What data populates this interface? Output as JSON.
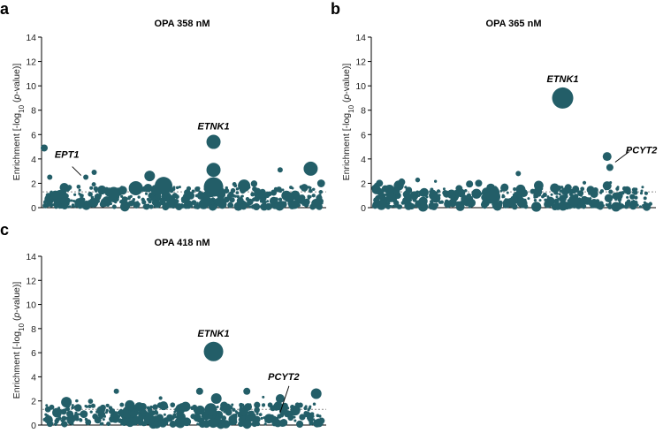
{
  "chart_data": [
    {
      "type": "scatter",
      "panel": "a",
      "title": "OPA 358 nM",
      "ylabel": "Enrichment [-log10 (p-value)]",
      "ylabel_parts": [
        "Enrichment [-log",
        "10",
        " (",
        "p",
        "-value)]"
      ],
      "ylim": [
        0,
        14
      ],
      "yticks": [
        "0",
        "2",
        "4",
        "6",
        "8",
        "10",
        "12",
        "14"
      ],
      "threshold": 1.3,
      "background_count": 420,
      "background_seed": 11,
      "points": [
        {
          "x": 0.0,
          "y": 4.9,
          "r": 4
        },
        {
          "x": 0.02,
          "y": 2.5,
          "r": 3
        },
        {
          "x": 0.15,
          "y": 2.5,
          "r": 3
        },
        {
          "x": 0.18,
          "y": 2.9,
          "r": 3
        },
        {
          "x": 0.25,
          "y": 1.2,
          "r": 7
        },
        {
          "x": 0.33,
          "y": 1.6,
          "r": 8
        },
        {
          "x": 0.38,
          "y": 2.6,
          "r": 6
        },
        {
          "x": 0.43,
          "y": 1.8,
          "r": 10
        },
        {
          "x": 0.61,
          "y": 5.4,
          "r": 8
        },
        {
          "x": 0.61,
          "y": 3.1,
          "r": 8
        },
        {
          "x": 0.61,
          "y": 1.7,
          "r": 11
        },
        {
          "x": 0.72,
          "y": 1.8,
          "r": 7
        },
        {
          "x": 0.85,
          "y": 3.1,
          "r": 3
        },
        {
          "x": 0.96,
          "y": 3.2,
          "r": 8
        }
      ],
      "annotations": [
        {
          "label": "ETNK1",
          "x": 0.61,
          "y": 5.4
        },
        {
          "label": "EPT1",
          "x": 0.12,
          "y": 2.5
        }
      ]
    },
    {
      "type": "scatter",
      "panel": "b",
      "title": "OPA 365 nM",
      "ylabel": "Enrichment [-log10 (p-value)]",
      "ylabel_parts": [
        "Enrichment [-log",
        "10",
        " (",
        "p",
        "-value)]"
      ],
      "ylim": [
        0,
        14
      ],
      "yticks": [
        "0",
        "2",
        "4",
        "6",
        "8",
        "10",
        "12",
        "14"
      ],
      "threshold": 1.3,
      "background_count": 420,
      "background_seed": 23,
      "points": [
        {
          "x": 0.02,
          "y": 2.0,
          "r": 4
        },
        {
          "x": 0.1,
          "y": 2.1,
          "r": 4
        },
        {
          "x": 0.43,
          "y": 0.9,
          "r": 8
        },
        {
          "x": 0.52,
          "y": 2.8,
          "r": 3
        },
        {
          "x": 0.59,
          "y": 1.3,
          "r": 5
        },
        {
          "x": 0.68,
          "y": 9.0,
          "r": 12
        },
        {
          "x": 0.84,
          "y": 4.2,
          "r": 5
        },
        {
          "x": 0.85,
          "y": 3.3,
          "r": 4
        },
        {
          "x": 0.84,
          "y": 1.8,
          "r": 5
        },
        {
          "x": 0.72,
          "y": 0.6,
          "r": 6
        }
      ],
      "annotations": [
        {
          "label": "ETNK1",
          "x": 0.68,
          "y": 9.0
        },
        {
          "label": "PCYT2",
          "x": 0.85,
          "y": 3.3
        }
      ]
    },
    {
      "type": "scatter",
      "panel": "c",
      "title": "OPA 418 nM",
      "ylabel": "Enrichment [-log10 (p-value)]",
      "ylabel_parts": [
        "Enrichment [-log",
        "10",
        " (",
        "p",
        "-value)]"
      ],
      "ylim": [
        0,
        14
      ],
      "yticks": [
        "0",
        "2",
        "4",
        "6",
        "8",
        "10",
        "12",
        "14"
      ],
      "threshold": 1.3,
      "background_count": 420,
      "background_seed": 37,
      "points": [
        {
          "x": 0.08,
          "y": 1.9,
          "r": 6
        },
        {
          "x": 0.26,
          "y": 2.8,
          "r": 3
        },
        {
          "x": 0.56,
          "y": 2.8,
          "r": 4
        },
        {
          "x": 0.61,
          "y": 6.1,
          "r": 11
        },
        {
          "x": 0.62,
          "y": 2.2,
          "r": 6
        },
        {
          "x": 0.6,
          "y": 1.3,
          "r": 7
        },
        {
          "x": 0.73,
          "y": 2.8,
          "r": 4
        },
        {
          "x": 0.85,
          "y": 2.2,
          "r": 5
        },
        {
          "x": 0.98,
          "y": 2.6,
          "r": 6
        },
        {
          "x": 0.43,
          "y": 1.6,
          "r": 5
        }
      ],
      "annotations": [
        {
          "label": "ETNK1",
          "x": 0.61,
          "y": 6.1
        },
        {
          "label": "PCYT2",
          "x": 0.85,
          "y": 0.6
        }
      ]
    }
  ],
  "panel_letters": [
    "a",
    "b",
    "c"
  ]
}
